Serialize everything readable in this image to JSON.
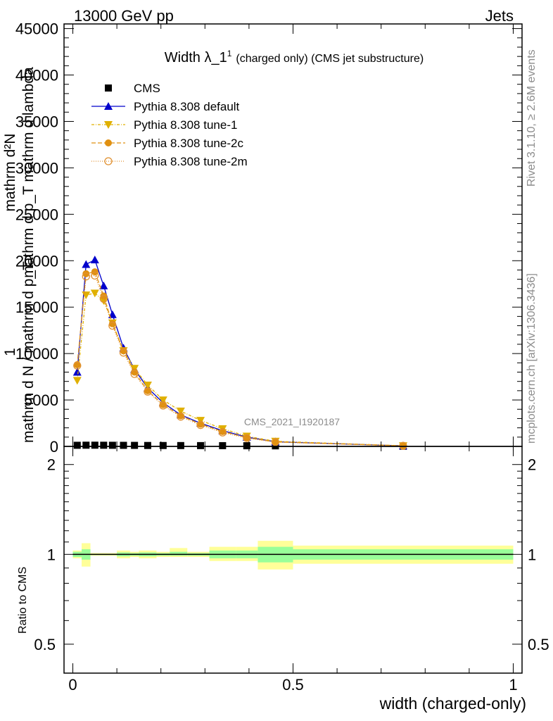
{
  "header": {
    "left": "13000 GeV pp",
    "right": "Jets"
  },
  "side_labels": {
    "rivet": "Rivet 3.1.10, ≥ 2.6M events",
    "mcplots": "mcplots.cern.ch [arXiv:1306.3436]"
  },
  "watermark": "CMS_2021_I1920187",
  "chart_data": [
    {
      "type": "line",
      "title": "Width λ_1¹ (charged only) (CMS jet substructure)",
      "title_main": "Width λ_1",
      "title_sup": "1",
      "title_rest": "(charged only) (CMS jet substructure)",
      "ylabel_num": "mathrm d²N",
      "ylabel_den": "mathrm d p_T mathrm d lambda",
      "ylabel_prefix_num": "1",
      "ylabel_prefix_den": "mathrm d N / mathrm d p_T",
      "xlim": [
        -0.02,
        1.02
      ],
      "ylim": [
        0,
        45500
      ],
      "yticks": [
        0,
        5000,
        10000,
        15000,
        20000,
        25000,
        30000,
        35000,
        40000,
        45000
      ],
      "ytick_labels": [
        "0",
        "5000",
        "10000",
        "15000",
        "20000",
        "25000",
        "30000",
        "35000",
        "40000",
        "45000"
      ],
      "legend_position": "top-left",
      "x": [
        0.01,
        0.03,
        0.05,
        0.07,
        0.09,
        0.115,
        0.14,
        0.17,
        0.205,
        0.245,
        0.29,
        0.34,
        0.395,
        0.46,
        0.75
      ],
      "series": [
        {
          "name": "CMS",
          "marker": "square",
          "color": "#000000",
          "values": [
            120,
            130,
            130,
            125,
            120,
            115,
            110,
            100,
            95,
            90,
            85,
            80,
            70,
            60,
            20
          ]
        },
        {
          "name": "Pythia 8.308 default",
          "marker": "triangle-up",
          "color": "#0000cc",
          "dash": "solid",
          "values": [
            8000,
            19600,
            20100,
            17300,
            14200,
            10600,
            8300,
            6300,
            4700,
            3400,
            2500,
            1700,
            1000,
            500,
            60
          ]
        },
        {
          "name": "Pythia 8.308 tune-1",
          "marker": "triangle-down",
          "color": "#e0b000",
          "dash": "4,2,1,2",
          "values": [
            7100,
            16300,
            16500,
            15700,
            13300,
            10300,
            8400,
            6600,
            5000,
            3800,
            2800,
            1900,
            1100,
            550,
            70
          ]
        },
        {
          "name": "Pythia 8.308 tune-2c",
          "marker": "circle",
          "color": "#e09010",
          "dash": "6,3",
          "values": [
            8800,
            18600,
            18800,
            16200,
            13200,
            10300,
            8000,
            6000,
            4500,
            3300,
            2400,
            1600,
            950,
            480,
            60
          ]
        },
        {
          "name": "Pythia 8.308 tune-2m",
          "marker": "circle-open",
          "color": "#e09030",
          "dash": "1,2",
          "values": [
            8700,
            18300,
            18400,
            15900,
            13000,
            10100,
            7800,
            5900,
            4400,
            3200,
            2300,
            1500,
            900,
            460,
            60
          ]
        }
      ]
    },
    {
      "type": "area",
      "ylabel": "Ratio to CMS",
      "xlabel": "width (charged-only)",
      "log_y": true,
      "ylim": [
        0.4,
        2.3
      ],
      "yticks": [
        0.5,
        1,
        2
      ],
      "ytick_labels": [
        "0.5",
        "1",
        "2"
      ],
      "xticks": [
        0,
        0.5,
        1
      ],
      "xtick_labels": [
        "0",
        "0.5",
        "1"
      ],
      "bins": [
        0,
        0.02,
        0.04,
        0.06,
        0.08,
        0.1,
        0.13,
        0.15,
        0.19,
        0.22,
        0.26,
        0.31,
        0.37,
        0.42,
        0.5,
        1.0
      ],
      "band_outer_lo": [
        0.97,
        0.91,
        0.99,
        0.99,
        0.99,
        0.97,
        0.98,
        0.97,
        0.98,
        0.98,
        0.98,
        0.95,
        0.95,
        0.89,
        0.93
      ],
      "band_outer_hi": [
        1.03,
        1.09,
        1.01,
        1.01,
        1.01,
        1.03,
        1.02,
        1.03,
        1.02,
        1.05,
        1.02,
        1.06,
        1.06,
        1.11,
        1.07
      ],
      "band_inner_lo": [
        0.98,
        0.96,
        0.995,
        0.995,
        0.995,
        0.985,
        0.99,
        0.985,
        0.99,
        0.99,
        0.99,
        0.97,
        0.97,
        0.94,
        0.96
      ],
      "band_inner_hi": [
        1.02,
        1.04,
        1.005,
        1.005,
        1.005,
        1.015,
        1.01,
        1.015,
        1.01,
        1.02,
        1.01,
        1.03,
        1.03,
        1.06,
        1.04
      ],
      "band_outer_color": "#ffff99",
      "band_inner_color": "#99ff99",
      "reference": 1
    }
  ]
}
